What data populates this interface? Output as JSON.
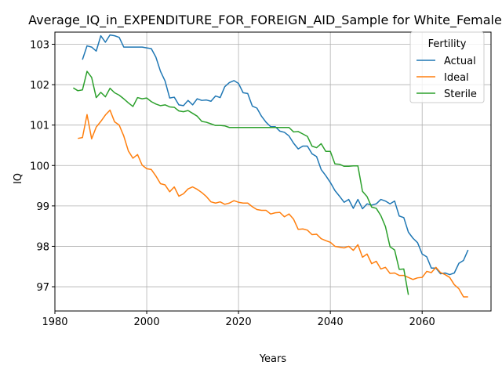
{
  "chart_data": {
    "type": "line",
    "title": "Average_IQ_in_EXPENDITURE_FOR_FOREIGN_AID_Sample for White_Female",
    "xlabel": "Years",
    "ylabel": "IQ",
    "xlim": [
      1980,
      2075
    ],
    "ylim": [
      96.4,
      103.3
    ],
    "xticks": [
      1980,
      2000,
      2020,
      2040,
      2060
    ],
    "yticks": [
      97,
      98,
      99,
      100,
      101,
      102,
      103
    ],
    "grid": true,
    "legend": {
      "title": "Fertility",
      "position": "top-right"
    },
    "series": [
      {
        "name": "Actual",
        "color": "#1f77b4",
        "points": [
          [
            1986,
            102.62
          ],
          [
            1987,
            102.96
          ],
          [
            1988,
            102.93
          ],
          [
            1989,
            102.83
          ],
          [
            1990,
            103.21
          ],
          [
            1991,
            103.05
          ],
          [
            1992,
            103.23
          ],
          [
            1993,
            103.21
          ],
          [
            1994,
            103.17
          ],
          [
            1995,
            102.93
          ],
          [
            1996,
            102.93
          ],
          [
            1997,
            102.93
          ],
          [
            1998,
            102.93
          ],
          [
            1999,
            102.93
          ],
          [
            2000,
            102.91
          ],
          [
            2001,
            102.89
          ],
          [
            2002,
            102.68
          ],
          [
            2003,
            102.33
          ],
          [
            2004,
            102.09
          ],
          [
            2005,
            101.67
          ],
          [
            2006,
            101.69
          ],
          [
            2007,
            101.5
          ],
          [
            2008,
            101.48
          ],
          [
            2009,
            101.61
          ],
          [
            2010,
            101.5
          ],
          [
            2011,
            101.65
          ],
          [
            2012,
            101.61
          ],
          [
            2013,
            101.62
          ],
          [
            2014,
            101.59
          ],
          [
            2015,
            101.72
          ],
          [
            2016,
            101.68
          ],
          [
            2017,
            101.95
          ],
          [
            2018,
            102.05
          ],
          [
            2019,
            102.1
          ],
          [
            2020,
            102.03
          ],
          [
            2021,
            101.8
          ],
          [
            2022,
            101.78
          ],
          [
            2023,
            101.47
          ],
          [
            2024,
            101.42
          ],
          [
            2025,
            101.22
          ],
          [
            2026,
            101.07
          ],
          [
            2027,
            100.96
          ],
          [
            2028,
            100.96
          ],
          [
            2029,
            100.85
          ],
          [
            2030,
            100.82
          ],
          [
            2031,
            100.73
          ],
          [
            2032,
            100.55
          ],
          [
            2033,
            100.41
          ],
          [
            2034,
            100.48
          ],
          [
            2035,
            100.48
          ],
          [
            2036,
            100.29
          ],
          [
            2037,
            100.22
          ],
          [
            2038,
            99.9
          ],
          [
            2039,
            99.75
          ],
          [
            2040,
            99.58
          ],
          [
            2041,
            99.38
          ],
          [
            2042,
            99.24
          ],
          [
            2043,
            99.09
          ],
          [
            2044,
            99.16
          ],
          [
            2045,
            98.94
          ],
          [
            2046,
            99.16
          ],
          [
            2047,
            98.93
          ],
          [
            2048,
            99.05
          ],
          [
            2049,
            99.02
          ],
          [
            2050,
            99.05
          ],
          [
            2051,
            99.16
          ],
          [
            2052,
            99.12
          ],
          [
            2053,
            99.05
          ],
          [
            2054,
            99.12
          ],
          [
            2055,
            98.75
          ],
          [
            2056,
            98.71
          ],
          [
            2057,
            98.35
          ],
          [
            2058,
            98.2
          ],
          [
            2059,
            98.09
          ],
          [
            2060,
            97.81
          ],
          [
            2061,
            97.74
          ],
          [
            2062,
            97.46
          ],
          [
            2063,
            97.46
          ],
          [
            2064,
            97.32
          ],
          [
            2065,
            97.34
          ],
          [
            2066,
            97.3
          ],
          [
            2067,
            97.34
          ],
          [
            2068,
            97.58
          ],
          [
            2069,
            97.65
          ],
          [
            2070,
            97.91
          ]
        ]
      },
      {
        "name": "Ideal",
        "color": "#ff7f0e",
        "points": [
          [
            1985,
            100.67
          ],
          [
            1986,
            100.69
          ],
          [
            1987,
            101.26
          ],
          [
            1988,
            100.66
          ],
          [
            1989,
            100.95
          ],
          [
            1990,
            101.09
          ],
          [
            1991,
            101.25
          ],
          [
            1992,
            101.37
          ],
          [
            1993,
            101.08
          ],
          [
            1994,
            101.0
          ],
          [
            1995,
            100.73
          ],
          [
            1996,
            100.36
          ],
          [
            1997,
            100.18
          ],
          [
            1998,
            100.27
          ],
          [
            1999,
            100.01
          ],
          [
            2000,
            99.92
          ],
          [
            2001,
            99.9
          ],
          [
            2002,
            99.74
          ],
          [
            2003,
            99.55
          ],
          [
            2004,
            99.52
          ],
          [
            2005,
            99.35
          ],
          [
            2006,
            99.47
          ],
          [
            2007,
            99.24
          ],
          [
            2008,
            99.3
          ],
          [
            2009,
            99.42
          ],
          [
            2010,
            99.47
          ],
          [
            2011,
            99.41
          ],
          [
            2012,
            99.33
          ],
          [
            2013,
            99.23
          ],
          [
            2014,
            99.1
          ],
          [
            2015,
            99.07
          ],
          [
            2016,
            99.1
          ],
          [
            2017,
            99.04
          ],
          [
            2018,
            99.07
          ],
          [
            2019,
            99.13
          ],
          [
            2020,
            99.09
          ],
          [
            2021,
            99.07
          ],
          [
            2022,
            99.07
          ],
          [
            2023,
            98.98
          ],
          [
            2024,
            98.91
          ],
          [
            2025,
            98.89
          ],
          [
            2026,
            98.89
          ],
          [
            2027,
            98.8
          ],
          [
            2028,
            98.83
          ],
          [
            2029,
            98.84
          ],
          [
            2030,
            98.73
          ],
          [
            2031,
            98.8
          ],
          [
            2032,
            98.67
          ],
          [
            2033,
            98.42
          ],
          [
            2034,
            98.43
          ],
          [
            2035,
            98.4
          ],
          [
            2036,
            98.29
          ],
          [
            2037,
            98.3
          ],
          [
            2038,
            98.19
          ],
          [
            2039,
            98.14
          ],
          [
            2040,
            98.1
          ],
          [
            2041,
            98.0
          ],
          [
            2042,
            97.98
          ],
          [
            2043,
            97.96
          ],
          [
            2044,
            98.0
          ],
          [
            2045,
            97.9
          ],
          [
            2046,
            98.04
          ],
          [
            2047,
            97.73
          ],
          [
            2048,
            97.81
          ],
          [
            2049,
            97.57
          ],
          [
            2050,
            97.63
          ],
          [
            2051,
            97.44
          ],
          [
            2052,
            97.48
          ],
          [
            2053,
            97.33
          ],
          [
            2054,
            97.34
          ],
          [
            2055,
            97.28
          ],
          [
            2056,
            97.28
          ],
          [
            2057,
            97.23
          ],
          [
            2058,
            97.18
          ],
          [
            2059,
            97.22
          ],
          [
            2060,
            97.23
          ],
          [
            2061,
            97.38
          ],
          [
            2062,
            97.35
          ],
          [
            2063,
            97.48
          ],
          [
            2064,
            97.35
          ],
          [
            2065,
            97.3
          ],
          [
            2066,
            97.23
          ],
          [
            2067,
            97.05
          ],
          [
            2068,
            96.95
          ],
          [
            2069,
            96.75
          ],
          [
            2070,
            96.75
          ]
        ]
      },
      {
        "name": "Sterile",
        "color": "#2ca02c",
        "points": [
          [
            1984,
            101.92
          ],
          [
            1985,
            101.85
          ],
          [
            1986,
            101.87
          ],
          [
            1987,
            102.33
          ],
          [
            1988,
            102.18
          ],
          [
            1989,
            101.68
          ],
          [
            1990,
            101.81
          ],
          [
            1991,
            101.7
          ],
          [
            1992,
            101.91
          ],
          [
            1993,
            101.8
          ],
          [
            1994,
            101.74
          ],
          [
            1995,
            101.65
          ],
          [
            1996,
            101.55
          ],
          [
            1997,
            101.46
          ],
          [
            1998,
            101.68
          ],
          [
            1999,
            101.65
          ],
          [
            2000,
            101.67
          ],
          [
            2001,
            101.58
          ],
          [
            2002,
            101.52
          ],
          [
            2003,
            101.48
          ],
          [
            2004,
            101.5
          ],
          [
            2005,
            101.45
          ],
          [
            2006,
            101.44
          ],
          [
            2007,
            101.35
          ],
          [
            2008,
            101.33
          ],
          [
            2009,
            101.36
          ],
          [
            2010,
            101.29
          ],
          [
            2011,
            101.22
          ],
          [
            2012,
            101.09
          ],
          [
            2013,
            101.07
          ],
          [
            2014,
            101.03
          ],
          [
            2015,
            100.99
          ],
          [
            2016,
            100.99
          ],
          [
            2017,
            100.98
          ],
          [
            2018,
            100.94
          ],
          [
            2019,
            100.94
          ],
          [
            2020,
            100.94
          ],
          [
            2021,
            100.94
          ],
          [
            2022,
            100.94
          ],
          [
            2023,
            100.94
          ],
          [
            2024,
            100.94
          ],
          [
            2025,
            100.94
          ],
          [
            2026,
            100.94
          ],
          [
            2027,
            100.94
          ],
          [
            2028,
            100.94
          ],
          [
            2029,
            100.94
          ],
          [
            2030,
            100.94
          ],
          [
            2031,
            100.94
          ],
          [
            2032,
            100.83
          ],
          [
            2033,
            100.84
          ],
          [
            2034,
            100.78
          ],
          [
            2035,
            100.72
          ],
          [
            2036,
            100.48
          ],
          [
            2037,
            100.44
          ],
          [
            2038,
            100.54
          ],
          [
            2039,
            100.35
          ],
          [
            2040,
            100.35
          ],
          [
            2041,
            100.04
          ],
          [
            2042,
            100.03
          ],
          [
            2043,
            99.98
          ],
          [
            2044,
            99.98
          ],
          [
            2045,
            99.99
          ],
          [
            2046,
            99.99
          ],
          [
            2047,
            99.36
          ],
          [
            2048,
            99.23
          ],
          [
            2049,
            98.97
          ],
          [
            2050,
            98.94
          ],
          [
            2051,
            98.76
          ],
          [
            2052,
            98.49
          ],
          [
            2053,
            97.99
          ],
          [
            2054,
            97.91
          ],
          [
            2055,
            97.43
          ],
          [
            2056,
            97.44
          ],
          [
            2057,
            96.8
          ]
        ]
      }
    ]
  }
}
